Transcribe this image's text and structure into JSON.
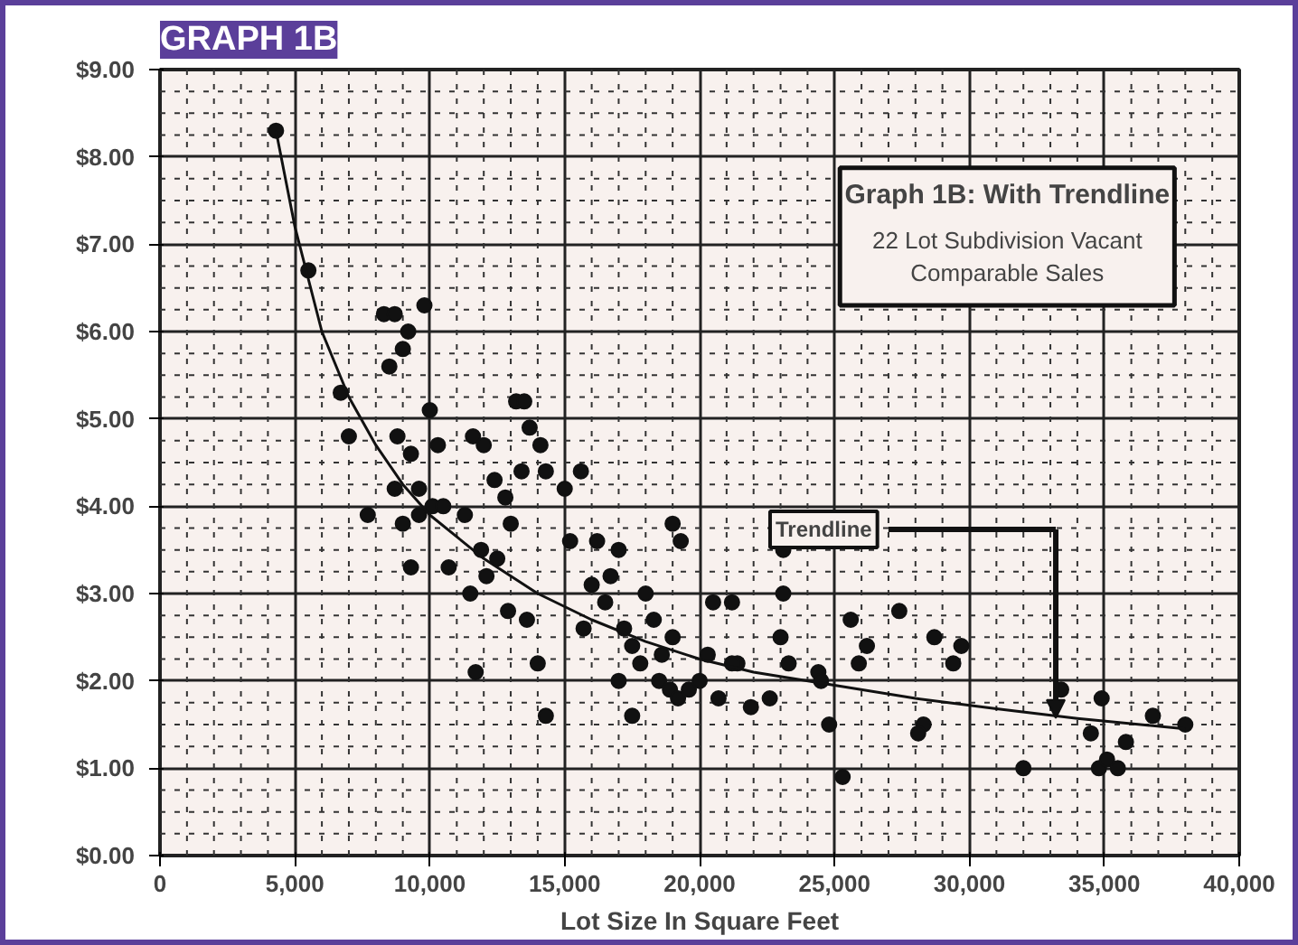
{
  "chart_data": {
    "type": "scatter",
    "title": "GRAPH 1B",
    "xlabel": "Lot Size In Square Feet",
    "xlim": [
      0,
      40000
    ],
    "ylim": [
      0,
      9
    ],
    "xticks": [
      0,
      {
        "value": 5000,
        "label": "5,000"
      },
      {
        "value": 10000,
        "label": "10,000"
      },
      {
        "value": 15000,
        "label": "15,000"
      },
      {
        "value": 20000,
        "label": "20,000"
      },
      {
        "value": 25000,
        "label": "25,000"
      },
      {
        "value": 30000,
        "label": "30,000"
      },
      {
        "value": 35000,
        "label": "35,000"
      },
      {
        "value": 40000,
        "label": "40,000"
      }
    ],
    "yticks": [
      {
        "value": 0,
        "label": "$0.00"
      },
      {
        "value": 1,
        "label": "$1.00"
      },
      {
        "value": 2,
        "label": "$2.00"
      },
      {
        "value": 3,
        "label": "$3.00"
      },
      {
        "value": 4,
        "label": "$4.00"
      },
      {
        "value": 5,
        "label": "$5.00"
      },
      {
        "value": 6,
        "label": "$6.00"
      },
      {
        "value": 7,
        "label": "$7.00"
      },
      {
        "value": 8,
        "label": "$8.00"
      },
      {
        "value": 9,
        "label": "$9.00"
      }
    ],
    "grid": true,
    "annotations": [
      "Graph 1B: With Trendline",
      "22 Lot Subdivision Vacant Comparable Sales",
      "Trendline"
    ],
    "series": [
      {
        "color": "#111111",
        "marker": "circle",
        "x": [
          4300,
          5500,
          6700,
          7000,
          7700,
          8300,
          8700,
          9200,
          9800,
          8500,
          9000,
          8800,
          9300,
          9600,
          10000,
          10300,
          8700,
          9000,
          9300,
          9600,
          10100,
          10500,
          10700,
          11300,
          11600,
          12000,
          12400,
          12100,
          12500,
          13000,
          13200,
          13500,
          13700,
          14100,
          14300,
          13400,
          12800,
          11900,
          11700,
          12900,
          13600,
          14000,
          14300,
          11500,
          15000,
          15600,
          15200,
          16200,
          16700,
          16500,
          17000,
          17200,
          17500,
          17800,
          17500,
          18000,
          18300,
          18500,
          18900,
          19200,
          19600,
          20000,
          20300,
          19000,
          19300,
          18600,
          19000,
          20500,
          21200,
          21400,
          21900,
          22600,
          23100,
          23100,
          23000,
          23300,
          24400,
          24800,
          25300,
          25600,
          25900,
          26200,
          27400,
          28700,
          28300,
          28100,
          29400,
          29700,
          32000,
          33400,
          34500,
          34800,
          35100,
          34900,
          35500,
          35800,
          36800,
          38000,
          15700,
          16000,
          17000,
          24500,
          21200,
          20700
        ],
        "values": [
          8.3,
          6.7,
          5.3,
          4.8,
          3.9,
          6.2,
          6.2,
          6.0,
          6.3,
          5.6,
          5.8,
          4.8,
          4.6,
          4.2,
          5.1,
          4.7,
          4.2,
          3.8,
          3.3,
          3.9,
          4.0,
          4.0,
          3.3,
          3.9,
          4.8,
          4.7,
          4.3,
          3.2,
          3.4,
          3.8,
          5.2,
          5.2,
          4.9,
          4.7,
          4.4,
          4.4,
          4.1,
          3.5,
          2.1,
          2.8,
          2.7,
          2.2,
          1.6,
          3.0,
          4.2,
          4.4,
          3.6,
          3.6,
          3.2,
          2.9,
          3.5,
          2.6,
          2.4,
          2.2,
          1.6,
          3.0,
          2.7,
          2.0,
          1.9,
          1.8,
          1.9,
          2.0,
          2.3,
          3.8,
          3.6,
          2.3,
          2.5,
          2.9,
          2.9,
          2.2,
          1.7,
          1.8,
          3.5,
          3.0,
          2.5,
          2.2,
          2.1,
          1.5,
          0.9,
          2.7,
          2.2,
          2.4,
          2.8,
          2.5,
          1.5,
          1.4,
          2.2,
          2.4,
          1.0,
          1.9,
          1.4,
          1.0,
          1.1,
          1.8,
          1.0,
          1.3,
          1.6,
          1.5,
          2.6,
          3.1,
          2.0,
          2.0,
          2.2,
          1.8
        ]
      },
      {
        "type": "line",
        "color": "#111111",
        "marker": "none",
        "x": [
          4300,
          5000,
          6000,
          7000,
          8000,
          9000,
          10000,
          12000,
          14000,
          16000,
          18000,
          20000,
          22000,
          25000,
          28000,
          31000,
          34000,
          38000
        ],
        "values": [
          8.3,
          7.2,
          6.0,
          5.25,
          4.7,
          4.25,
          3.9,
          3.4,
          3.0,
          2.7,
          2.45,
          2.25,
          2.1,
          1.95,
          1.8,
          1.68,
          1.57,
          1.45
        ]
      }
    ]
  }
}
